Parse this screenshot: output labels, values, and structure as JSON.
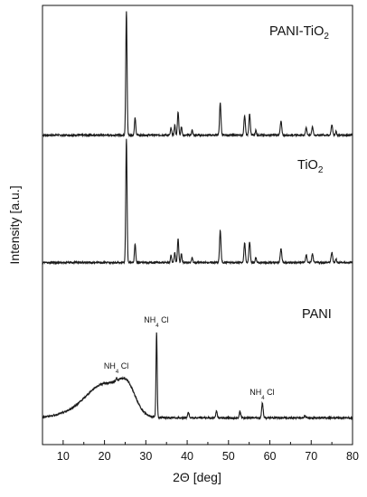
{
  "chart_data": {
    "type": "line",
    "title": "",
    "xlabel": "2Θ [deg]",
    "ylabel": "Intensity [a.u.]",
    "xlim": [
      5,
      80
    ],
    "x_ticks": [
      "10",
      "20",
      "30",
      "40",
      "50",
      "60",
      "70",
      "80"
    ],
    "y_ticks": [],
    "grid": false,
    "legend": "none",
    "line_color": "#1a1a1a",
    "series": [
      {
        "name": "PANI-TiO",
        "name_sub": "2",
        "baseline": 0.04,
        "noise": 0.012,
        "hump": null,
        "peaks": [
          {
            "x": 25.3,
            "h": 1.0,
            "w": 0.22
          },
          {
            "x": 27.4,
            "h": 0.14,
            "w": 0.22
          },
          {
            "x": 36.1,
            "h": 0.06,
            "w": 0.2
          },
          {
            "x": 37.0,
            "h": 0.08,
            "w": 0.2
          },
          {
            "x": 37.8,
            "h": 0.19,
            "w": 0.22
          },
          {
            "x": 38.6,
            "h": 0.07,
            "w": 0.2
          },
          {
            "x": 41.2,
            "h": 0.04,
            "w": 0.2
          },
          {
            "x": 48.0,
            "h": 0.26,
            "w": 0.24
          },
          {
            "x": 53.9,
            "h": 0.16,
            "w": 0.24
          },
          {
            "x": 55.1,
            "h": 0.17,
            "w": 0.24
          },
          {
            "x": 56.6,
            "h": 0.04,
            "w": 0.2
          },
          {
            "x": 62.7,
            "h": 0.11,
            "w": 0.26
          },
          {
            "x": 68.8,
            "h": 0.06,
            "w": 0.24
          },
          {
            "x": 70.3,
            "h": 0.07,
            "w": 0.24
          },
          {
            "x": 75.0,
            "h": 0.08,
            "w": 0.26
          },
          {
            "x": 76.0,
            "h": 0.03,
            "w": 0.2
          }
        ]
      },
      {
        "name": "TiO",
        "name_sub": "2",
        "baseline": 0.04,
        "noise": 0.012,
        "hump": null,
        "peaks": [
          {
            "x": 25.3,
            "h": 1.0,
            "w": 0.22
          },
          {
            "x": 27.4,
            "h": 0.15,
            "w": 0.22
          },
          {
            "x": 36.1,
            "h": 0.06,
            "w": 0.2
          },
          {
            "x": 37.0,
            "h": 0.08,
            "w": 0.2
          },
          {
            "x": 37.8,
            "h": 0.19,
            "w": 0.22
          },
          {
            "x": 38.6,
            "h": 0.07,
            "w": 0.2
          },
          {
            "x": 41.2,
            "h": 0.04,
            "w": 0.2
          },
          {
            "x": 48.0,
            "h": 0.26,
            "w": 0.24
          },
          {
            "x": 53.9,
            "h": 0.16,
            "w": 0.24
          },
          {
            "x": 55.1,
            "h": 0.17,
            "w": 0.24
          },
          {
            "x": 56.6,
            "h": 0.04,
            "w": 0.2
          },
          {
            "x": 62.7,
            "h": 0.11,
            "w": 0.26
          },
          {
            "x": 68.8,
            "h": 0.06,
            "w": 0.24
          },
          {
            "x": 70.3,
            "h": 0.07,
            "w": 0.24
          },
          {
            "x": 75.0,
            "h": 0.08,
            "w": 0.26
          },
          {
            "x": 76.0,
            "h": 0.03,
            "w": 0.2
          }
        ]
      },
      {
        "name": "PANI",
        "name_sub": "",
        "baseline": 0.03,
        "noise": 0.015,
        "hump": [
          {
            "x": 20.5,
            "h": 0.28,
            "w": 6.0
          },
          {
            "x": 25.5,
            "h": 0.2,
            "w": 2.8
          },
          {
            "x": 15.0,
            "h": 0.06,
            "w": 7.0
          }
        ],
        "peaks": [
          {
            "x": 22.9,
            "h": 0.03,
            "w": 0.22
          },
          {
            "x": 32.6,
            "h": 0.78,
            "w": 0.2
          },
          {
            "x": 40.3,
            "h": 0.05,
            "w": 0.25
          },
          {
            "x": 47.1,
            "h": 0.06,
            "w": 0.25
          },
          {
            "x": 52.8,
            "h": 0.06,
            "w": 0.25
          },
          {
            "x": 58.2,
            "h": 0.14,
            "w": 0.25
          },
          {
            "x": 68.5,
            "h": 0.02,
            "w": 0.25
          }
        ]
      }
    ],
    "annotations": [
      {
        "text": "NH",
        "sub": "4",
        "suffix": "Cl",
        "x": 22.9,
        "series": 2
      },
      {
        "text": "NH",
        "sub": "4",
        "suffix": "Cl",
        "x": 32.6,
        "series": 2
      },
      {
        "text": "NH",
        "sub": "4",
        "suffix": "Cl",
        "x": 58.2,
        "series": 2
      }
    ]
  }
}
